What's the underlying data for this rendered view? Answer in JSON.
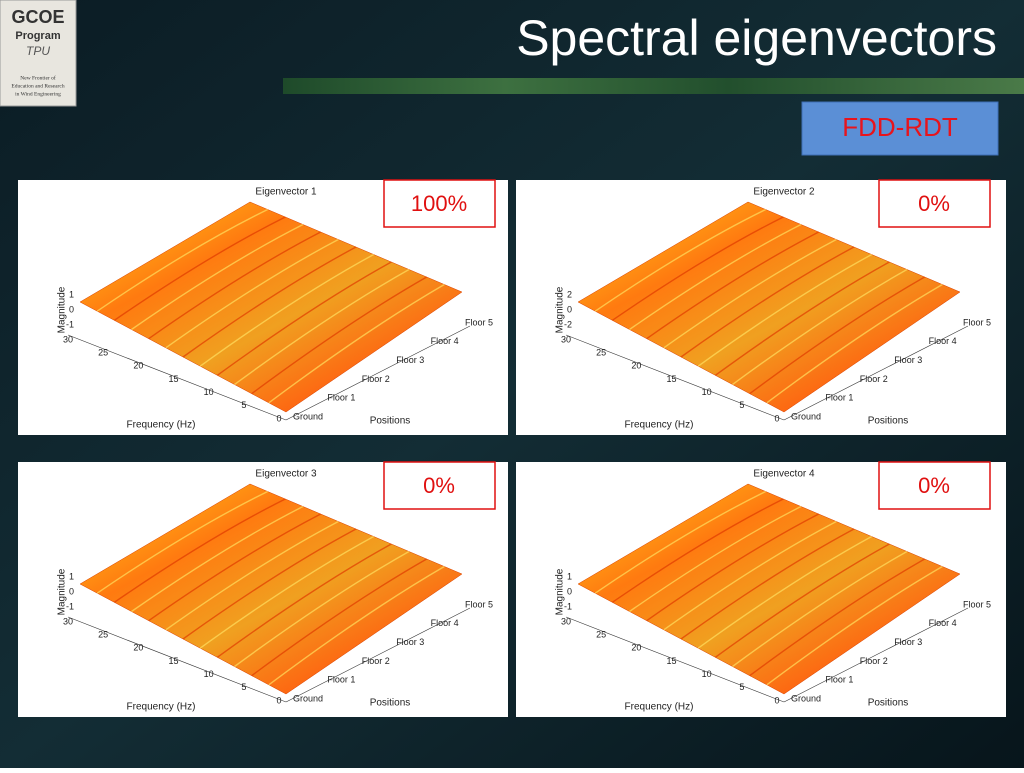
{
  "logo": {
    "title": "GCOE",
    "program": "Program",
    "school": "TPU",
    "motto": [
      "New Frontier of",
      "Education and Research",
      "in Wind Engineering"
    ]
  },
  "header": {
    "title": "Spectral eigenvectors",
    "method": "FDD-RDT"
  },
  "panels": [
    {
      "title": "Eigenvector 1",
      "badge": "100%",
      "z_label": "Magnitude",
      "z_ticks": [
        "1",
        "0",
        "-1"
      ],
      "x_label": "Frequency (Hz)",
      "x_ticks": [
        "30",
        "25",
        "20",
        "15",
        "10",
        "5",
        "0"
      ],
      "y_label": "Positions",
      "y_ticks": [
        "Ground",
        "Floor 1",
        "Floor 2",
        "Floor 3",
        "Floor 4",
        "Floor 5"
      ]
    },
    {
      "title": "Eigenvector 2",
      "badge": "0%",
      "z_label": "Magnitude",
      "z_ticks": [
        "2",
        "0",
        "-2"
      ],
      "x_label": "Frequency (Hz)",
      "x_ticks": [
        "30",
        "25",
        "20",
        "15",
        "10",
        "5",
        "0"
      ],
      "y_label": "Positions",
      "y_ticks": [
        "Ground",
        "Floor 1",
        "Floor 2",
        "Floor 3",
        "Floor 4",
        "Floor 5"
      ]
    },
    {
      "title": "Eigenvector 3",
      "badge": "0%",
      "z_label": "Magnitude",
      "z_ticks": [
        "1",
        "0",
        "-1"
      ],
      "x_label": "Frequency (Hz)",
      "x_ticks": [
        "30",
        "25",
        "20",
        "15",
        "10",
        "5",
        "0"
      ],
      "y_label": "Positions",
      "y_ticks": [
        "Ground",
        "Floor 1",
        "Floor 2",
        "Floor 3",
        "Floor 4",
        "Floor 5"
      ]
    },
    {
      "title": "Eigenvector 4",
      "badge": "0%",
      "z_label": "Magnitude",
      "z_ticks": [
        "1",
        "0",
        "-1"
      ],
      "x_label": "Frequency (Hz)",
      "x_ticks": [
        "30",
        "25",
        "20",
        "15",
        "10",
        "5",
        "0"
      ],
      "y_label": "Positions",
      "y_ticks": [
        "Ground",
        "Floor 1",
        "Floor 2",
        "Floor 3",
        "Floor 4",
        "Floor 5"
      ]
    }
  ]
}
